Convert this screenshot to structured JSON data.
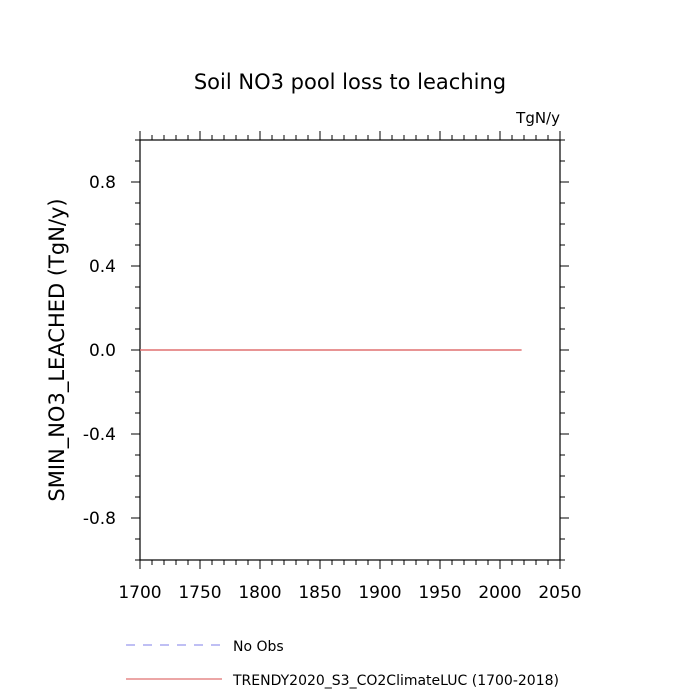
{
  "chart_data": {
    "type": "line",
    "title": "Soil NO3 pool loss to leaching",
    "units_label": "TgN/y",
    "ylabel": "SMIN_NO3_LEACHED  (TgN/y)",
    "xlabel": "",
    "xlim": [
      1700,
      2050
    ],
    "ylim": [
      -1.0,
      1.0
    ],
    "x_ticks": [
      1700,
      1750,
      1800,
      1850,
      1900,
      1950,
      2000,
      2050
    ],
    "y_ticks": [
      -0.8,
      -0.4,
      0.0,
      0.4,
      0.8
    ],
    "y_tick_labels": [
      "-0.8",
      "-0.4",
      "0.0",
      "0.4",
      "0.8"
    ],
    "grid": false,
    "legend_position": "bottom",
    "series": [
      {
        "name": "No Obs",
        "style": "dashed",
        "color": "#9999ee",
        "x": [],
        "y": []
      },
      {
        "name": "TRENDY2020_S3_CO2ClimateLUC (1700-2018)",
        "style": "solid",
        "color": "#e07070",
        "x": [
          1700,
          2018
        ],
        "y": [
          0.0,
          0.0
        ]
      }
    ]
  }
}
